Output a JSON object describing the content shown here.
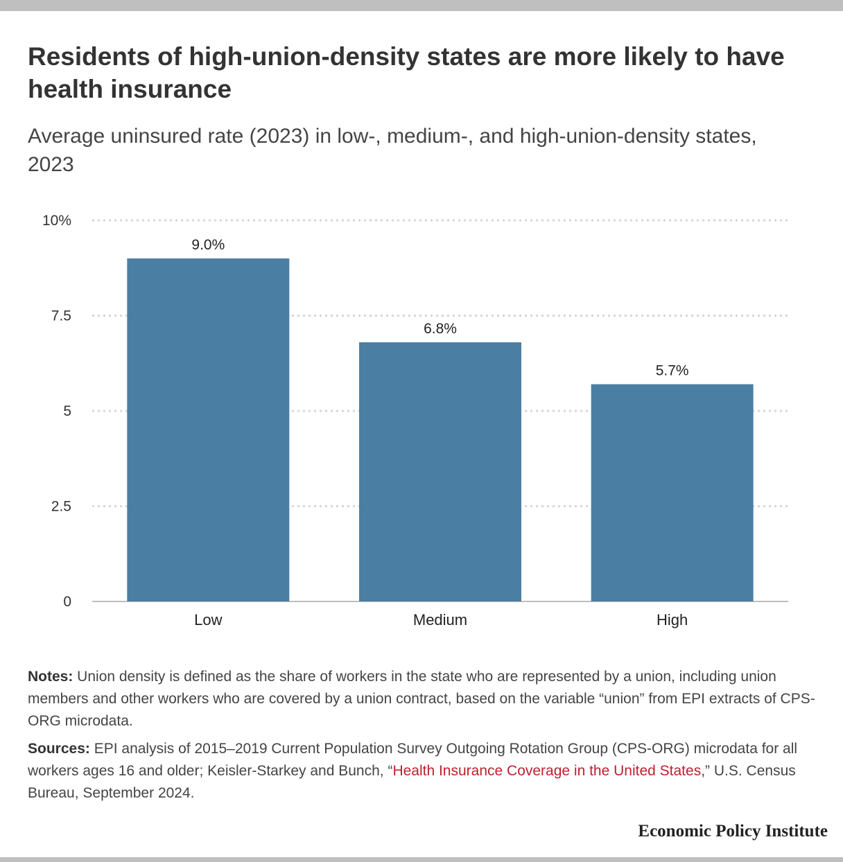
{
  "title": "Residents of high-union-density states are more likely to have health insurance",
  "subtitle": "Average uninsured rate (2023) in low-, medium-, and high-union-density states, 2023",
  "chart_data": {
    "type": "bar",
    "categories": [
      "Low",
      "Medium",
      "High"
    ],
    "values": [
      9.0,
      6.8,
      5.7
    ],
    "value_labels": [
      "9.0%",
      "6.8%",
      "5.7%"
    ],
    "yticks": [
      0,
      2.5,
      5,
      7.5,
      10
    ],
    "ytick_labels": [
      "0",
      "2.5",
      "5",
      "7.5",
      "10%"
    ],
    "ylim": [
      0,
      10
    ],
    "xlabel": "",
    "ylabel": "",
    "grid": true,
    "bar_color": "#4a7fa3"
  },
  "notes": {
    "label": "Notes:",
    "text": " Union density is defined as the share of workers in the state who are represented by a union, including union members and other workers who are covered by a union contract, based on the variable “union” from EPI extracts of CPS-ORG microdata."
  },
  "sources": {
    "label": "Sources:",
    "text_before": " EPI analysis of 2015–2019 Current Population Survey Outgoing Rotation Group (CPS-ORG) microdata for all workers ages 16 and older; Keisler-Starkey and Bunch, “",
    "link_text": "Health Insurance Coverage in the United States",
    "text_after": ",” U.S. Census Bureau, September 2024."
  },
  "footer": "Economic Policy Institute",
  "colors": {
    "link": "#c0202e",
    "rule": "#bfbfbf"
  }
}
